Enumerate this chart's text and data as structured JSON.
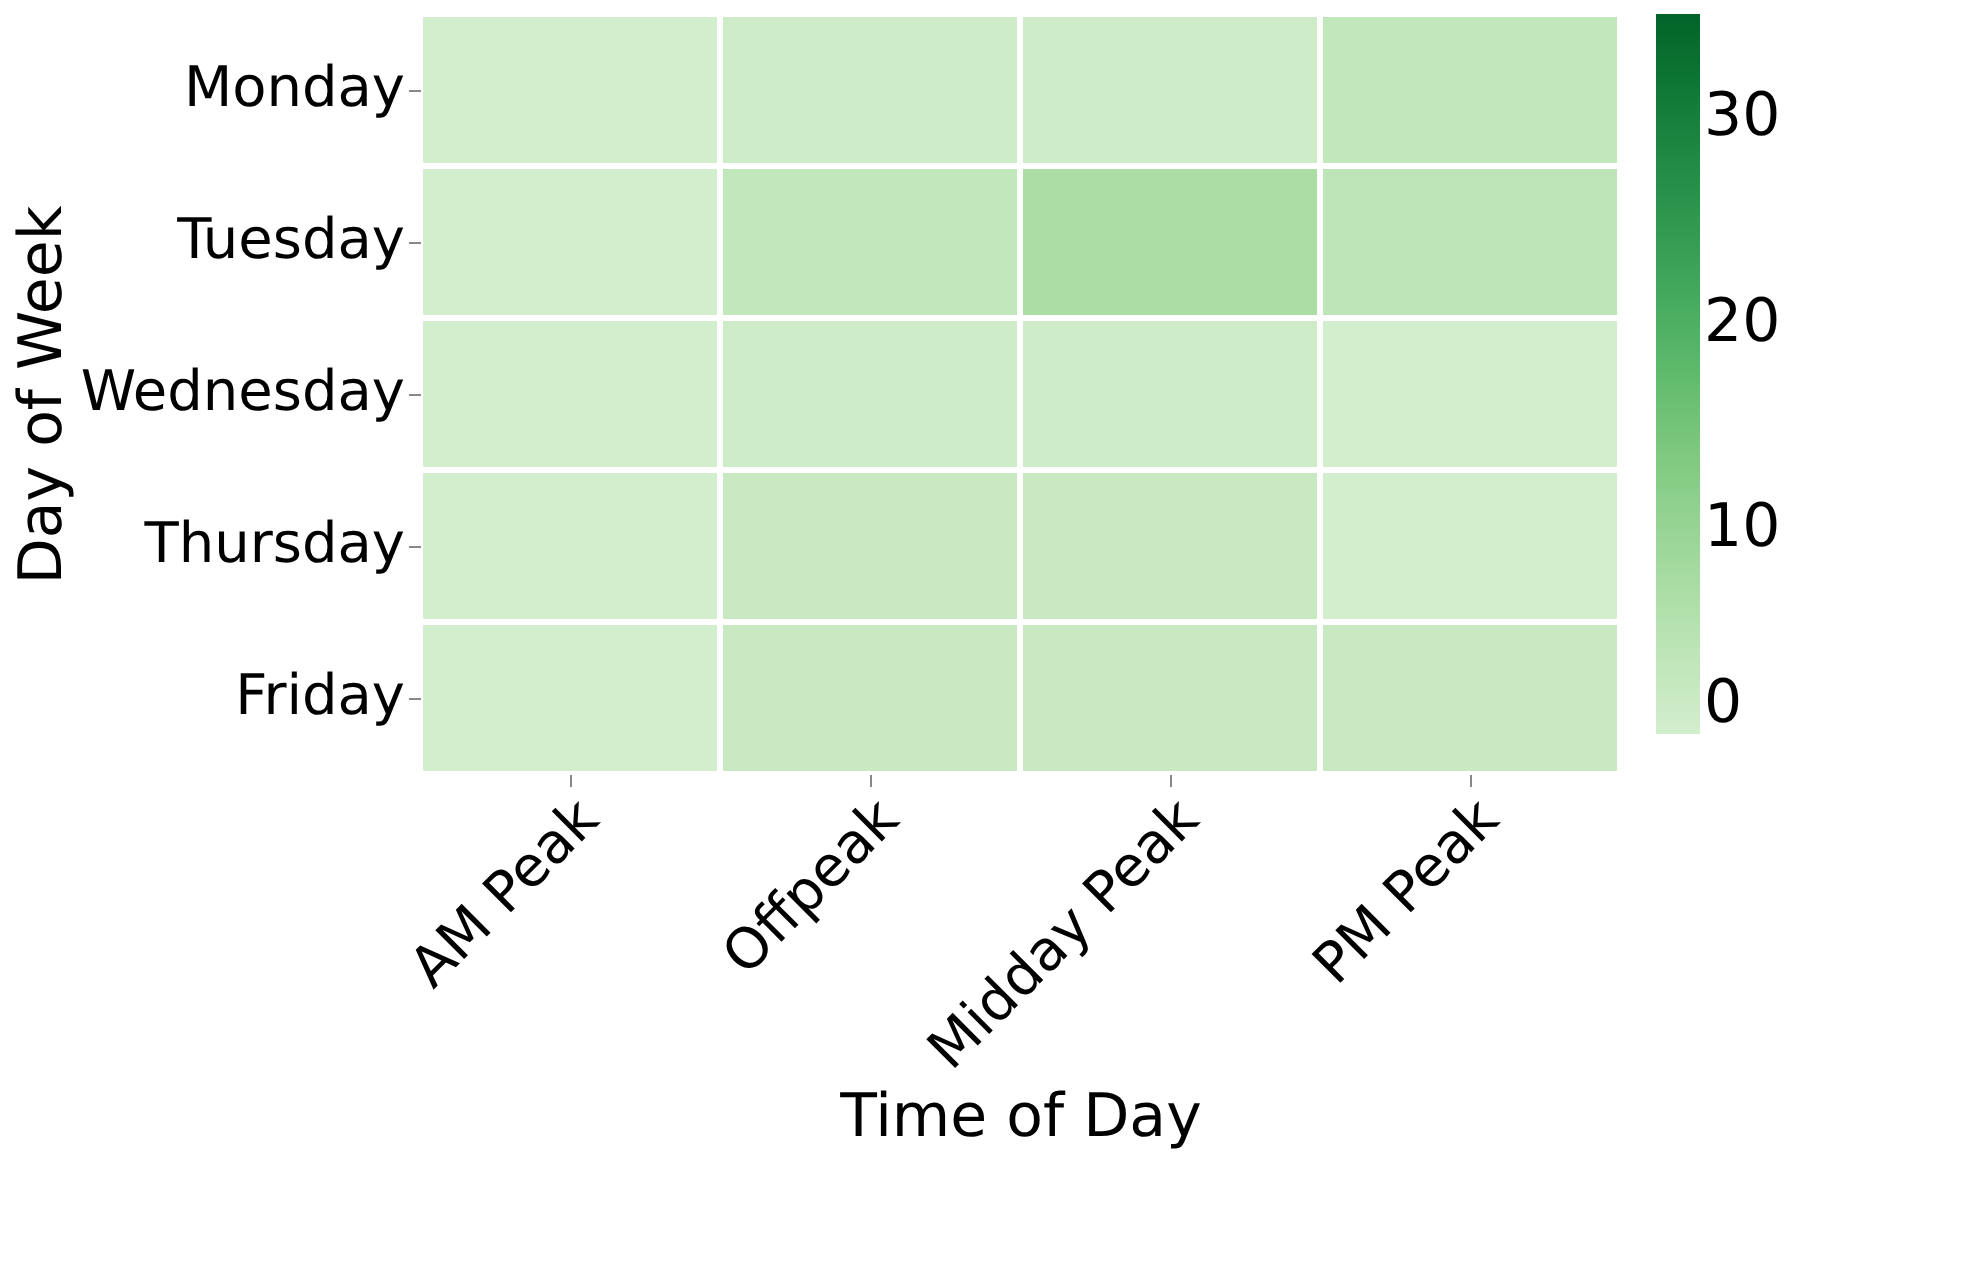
{
  "chart_data": {
    "type": "heatmap",
    "xlabel": "Time of Day",
    "ylabel": "Day of Week",
    "categories": [
      "AM Peak",
      "Offpeak",
      "Midday Peak",
      "PM Peak"
    ],
    "y_categories": [
      "Monday",
      "Tuesday",
      "Wednesday",
      "Thursday",
      "Friday"
    ],
    "cells": [
      [
        0,
        1,
        1,
        3
      ],
      [
        0,
        3,
        7,
        4
      ],
      [
        0,
        1,
        1,
        0
      ],
      [
        0,
        2,
        2,
        0
      ],
      [
        0,
        2,
        2,
        2
      ]
    ],
    "clim": [
      0,
      35
    ],
    "cticks": [
      0,
      10,
      20,
      30
    ]
  }
}
